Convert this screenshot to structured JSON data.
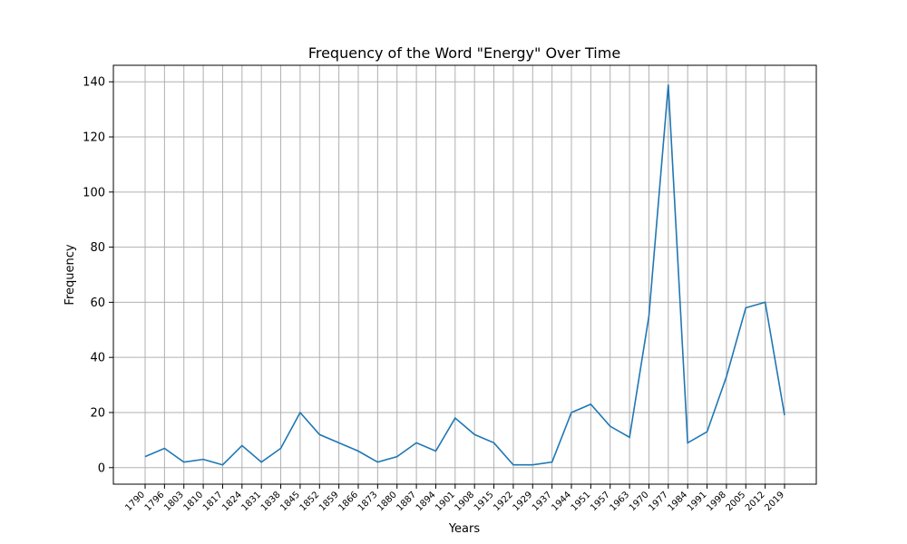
{
  "chart_data": {
    "type": "line",
    "title": "Frequency of the Word \"Energy\" Over Time",
    "xlabel": "Years",
    "ylabel": "Frequency",
    "ylim": [
      -6,
      146
    ],
    "yticks": [
      0,
      20,
      40,
      60,
      80,
      100,
      120,
      140
    ],
    "grid": true,
    "line_color": "#1f77b4",
    "categories": [
      "1790",
      "1796",
      "1803",
      "1810",
      "1817",
      "1824",
      "1831",
      "1838",
      "1845",
      "1852",
      "1859",
      "1866",
      "1873",
      "1880",
      "1887",
      "1894",
      "1901",
      "1908",
      "1915",
      "1922",
      "1929",
      "1937",
      "1944",
      "1951",
      "1957",
      "1963",
      "1970",
      "1977",
      "1984",
      "1991",
      "1998",
      "2005",
      "2012",
      "2019"
    ],
    "values": [
      4,
      7,
      2,
      3,
      1,
      8,
      2,
      7,
      20,
      12,
      9,
      6,
      2,
      4,
      9,
      6,
      18,
      12,
      9,
      1,
      1,
      2,
      20,
      23,
      15,
      11,
      55,
      139,
      9,
      13,
      33,
      58,
      60,
      19
    ]
  }
}
